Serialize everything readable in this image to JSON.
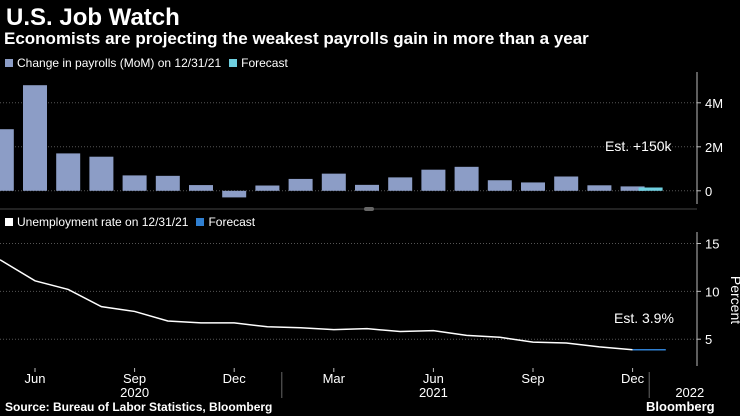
{
  "title": "U.S. Job Watch",
  "subtitle": "Economists are projecting the weakest payrolls gain in more than a year",
  "source": "Source: Bureau of Labor Statistics, Bloomberg",
  "brand": "Bloomberg",
  "colors": {
    "bar": "#8c9dc6",
    "forecast_bar": "#6fd0e0",
    "line": "#ffffff",
    "forecast_line": "#2f7fd1",
    "grid": "#555555"
  },
  "chart_data": [
    {
      "type": "bar",
      "title": "Change in payrolls (MoM)",
      "legend": [
        "Change in payrolls (MoM) on 12/31/21",
        "Forecast"
      ],
      "x": [
        "2020-05",
        "2020-06",
        "2020-07",
        "2020-08",
        "2020-09",
        "2020-10",
        "2020-11",
        "2020-12",
        "2021-01",
        "2021-02",
        "2021-03",
        "2021-04",
        "2021-05",
        "2021-06",
        "2021-07",
        "2021-08",
        "2021-09",
        "2021-10",
        "2021-11",
        "2021-12"
      ],
      "values": [
        2.8,
        4.8,
        1.7,
        1.55,
        0.7,
        0.68,
        0.26,
        -0.3,
        0.24,
        0.54,
        0.78,
        0.27,
        0.61,
        0.96,
        1.09,
        0.48,
        0.38,
        0.65,
        0.25,
        0.2
      ],
      "forecast": {
        "x": "2021-12",
        "value": 0.15
      },
      "yticks": [
        0,
        2,
        4
      ],
      "ytick_labels": [
        "0",
        "2M",
        "4M"
      ],
      "ylim": [
        -0.6,
        5.4
      ],
      "annotation": "Est. +150k",
      "grid": true
    },
    {
      "type": "line",
      "title": "Unemployment rate",
      "legend": [
        "Unemployment rate on 12/31/21",
        "Forecast"
      ],
      "x": [
        "2020-05",
        "2020-06",
        "2020-07",
        "2020-08",
        "2020-09",
        "2020-10",
        "2020-11",
        "2020-12",
        "2021-01",
        "2021-02",
        "2021-03",
        "2021-04",
        "2021-05",
        "2021-06",
        "2021-07",
        "2021-08",
        "2021-09",
        "2021-10",
        "2021-11",
        "2021-12"
      ],
      "values": [
        13.3,
        11.1,
        10.2,
        8.4,
        7.9,
        6.9,
        6.7,
        6.7,
        6.3,
        6.2,
        6.0,
        6.1,
        5.8,
        5.9,
        5.4,
        5.2,
        4.7,
        4.6,
        4.2,
        3.9
      ],
      "forecast": {
        "x": [
          "2021-12",
          "2022-01"
        ],
        "values": [
          3.9,
          3.9
        ]
      },
      "yticks": [
        5,
        10,
        15
      ],
      "ytick_labels": [
        "5",
        "10",
        "15"
      ],
      "ylim": [
        2.2,
        16.2
      ],
      "ylabel": "Percent",
      "annotation": "Est. 3.9%",
      "grid": true
    }
  ],
  "xaxis": {
    "ticks": [
      {
        "month": "2020-06",
        "label": "Jun"
      },
      {
        "month": "2020-09",
        "label": "Sep"
      },
      {
        "month": "2020-12",
        "label": "Dec"
      },
      {
        "month": "2021-03",
        "label": "Mar"
      },
      {
        "month": "2021-06",
        "label": "Jun"
      },
      {
        "month": "2021-09",
        "label": "Sep"
      },
      {
        "month": "2021-12",
        "label": "Dec"
      }
    ],
    "years": [
      {
        "month": "2020-09",
        "label": "2020"
      },
      {
        "month": "2021-06",
        "label": "2021"
      },
      {
        "month": "2022-01",
        "label": "2022"
      }
    ]
  }
}
